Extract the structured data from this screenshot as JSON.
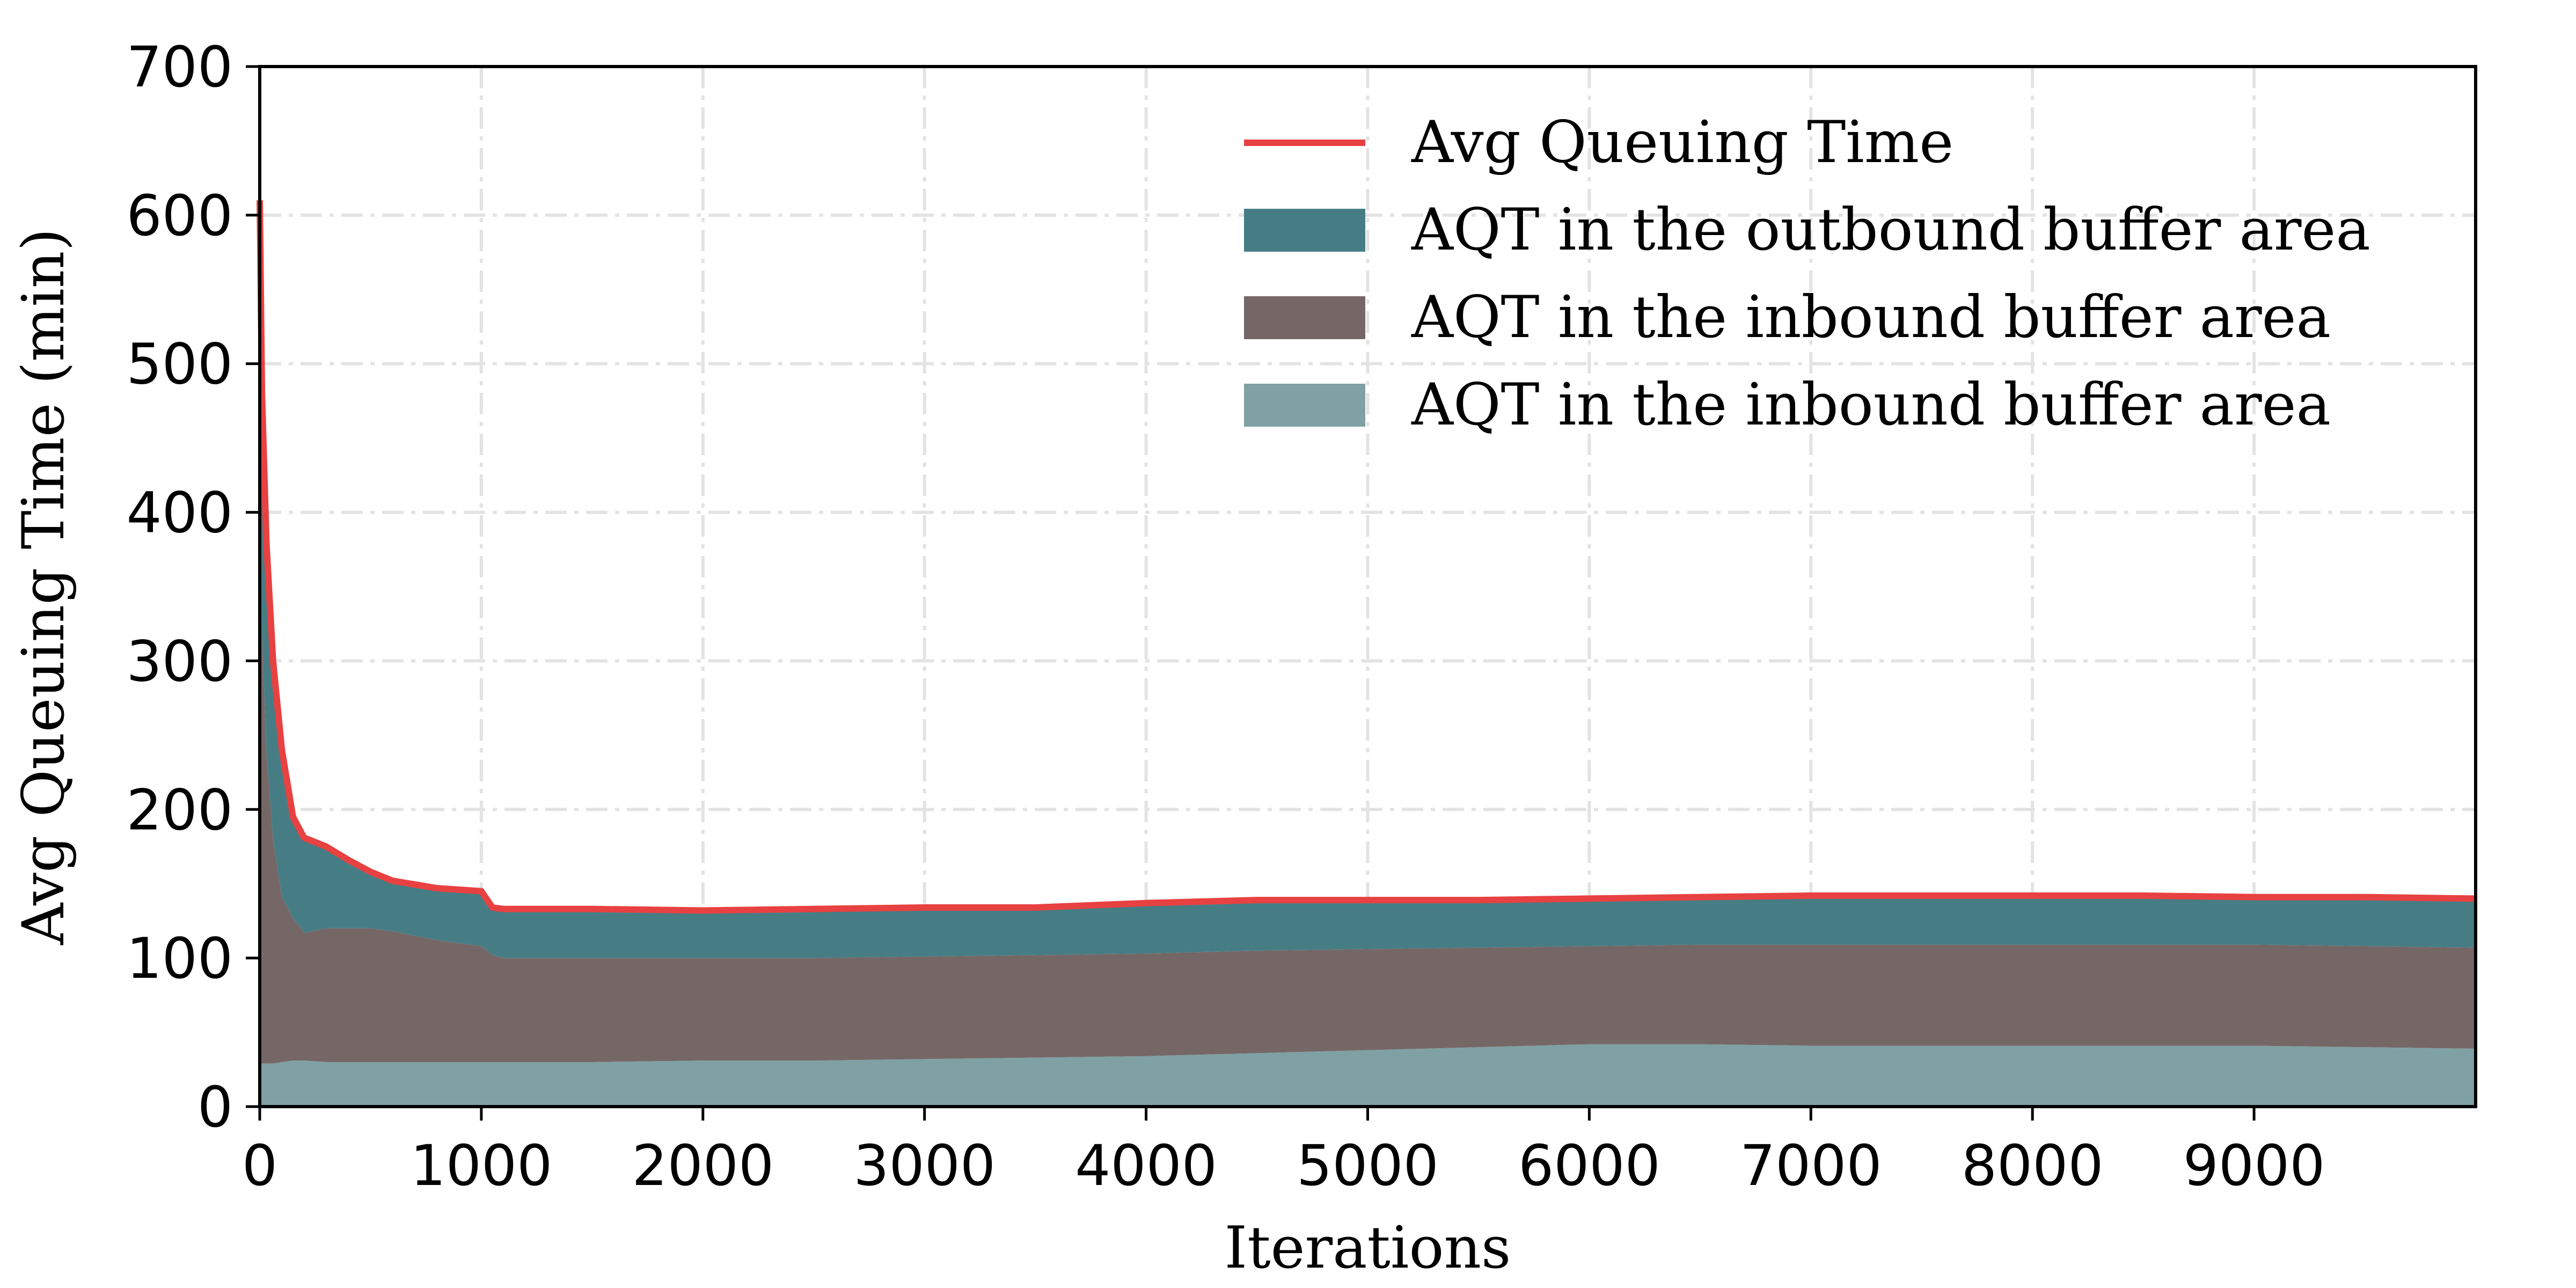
{
  "chart_data": {
    "type": "area",
    "xlabel": "Iterations",
    "ylabel": "Avg Queuing Time (min)",
    "xlim": [
      0,
      10000
    ],
    "ylim": [
      0,
      700
    ],
    "xticks": [
      0,
      1000,
      2000,
      3000,
      4000,
      5000,
      6000,
      7000,
      8000,
      9000
    ],
    "yticks": [
      0,
      100,
      200,
      300,
      400,
      500,
      600,
      700
    ],
    "grid": true,
    "legend_position": "top-right",
    "x": [
      0,
      10,
      30,
      60,
      100,
      150,
      200,
      300,
      400,
      500,
      600,
      800,
      1000,
      1050,
      1100,
      1500,
      2000,
      2500,
      3000,
      3500,
      4000,
      4500,
      5000,
      5500,
      6000,
      6500,
      7000,
      7500,
      8000,
      8500,
      9000,
      9500,
      10000
    ],
    "series": [
      {
        "name": "AQT in the inbound buffer area",
        "kind": "area",
        "color": "#7fa1a3",
        "values": [
          29,
          29,
          29,
          29,
          30,
          31,
          31,
          30,
          30,
          30,
          30,
          30,
          30,
          30,
          30,
          30,
          31,
          31,
          32,
          33,
          34,
          36,
          38,
          40,
          42,
          42,
          41,
          41,
          41,
          41,
          41,
          40,
          39
        ]
      },
      {
        "name": "AQT in the inbound buffer area",
        "kind": "area",
        "color": "#766767",
        "values": [
          321,
          291,
          211,
          151,
          111,
          96,
          86,
          90,
          90,
          90,
          88,
          82,
          78,
          72,
          70,
          70,
          69,
          69,
          69,
          69,
          69,
          69,
          68,
          67,
          66,
          67,
          68,
          68,
          68,
          68,
          68,
          68,
          68
        ]
      },
      {
        "name": "AQT in the outbound buffer area",
        "kind": "area",
        "color": "#467d85",
        "values": [
          0,
          160,
          140,
          120,
          99,
          68,
          64,
          55,
          46,
          38,
          34,
          35,
          37,
          32,
          33,
          33,
          32,
          33,
          33,
          32,
          34,
          34,
          33,
          32,
          32,
          32,
          33,
          33,
          33,
          33,
          32,
          33,
          33
        ]
      },
      {
        "name": "Avg Queuing Time",
        "kind": "line",
        "color": "#e84141",
        "values": [
          610,
          480,
          380,
          300,
          240,
          195,
          181,
          175,
          166,
          158,
          152,
          147,
          145,
          134,
          133,
          133,
          132,
          133,
          134,
          134,
          137,
          139,
          139,
          139,
          140,
          141,
          142,
          142,
          142,
          142,
          141,
          141,
          140
        ]
      }
    ],
    "legend": [
      {
        "label": "Avg Queuing Time",
        "kind": "line",
        "color": "#e84141"
      },
      {
        "label": "AQT in the outbound buffer area",
        "kind": "area",
        "color": "#467d85"
      },
      {
        "label": "AQT in the inbound buffer area",
        "kind": "area",
        "color": "#766767"
      },
      {
        "label": "AQT in the inbound buffer area",
        "kind": "area",
        "color": "#7fa1a3"
      }
    ]
  }
}
